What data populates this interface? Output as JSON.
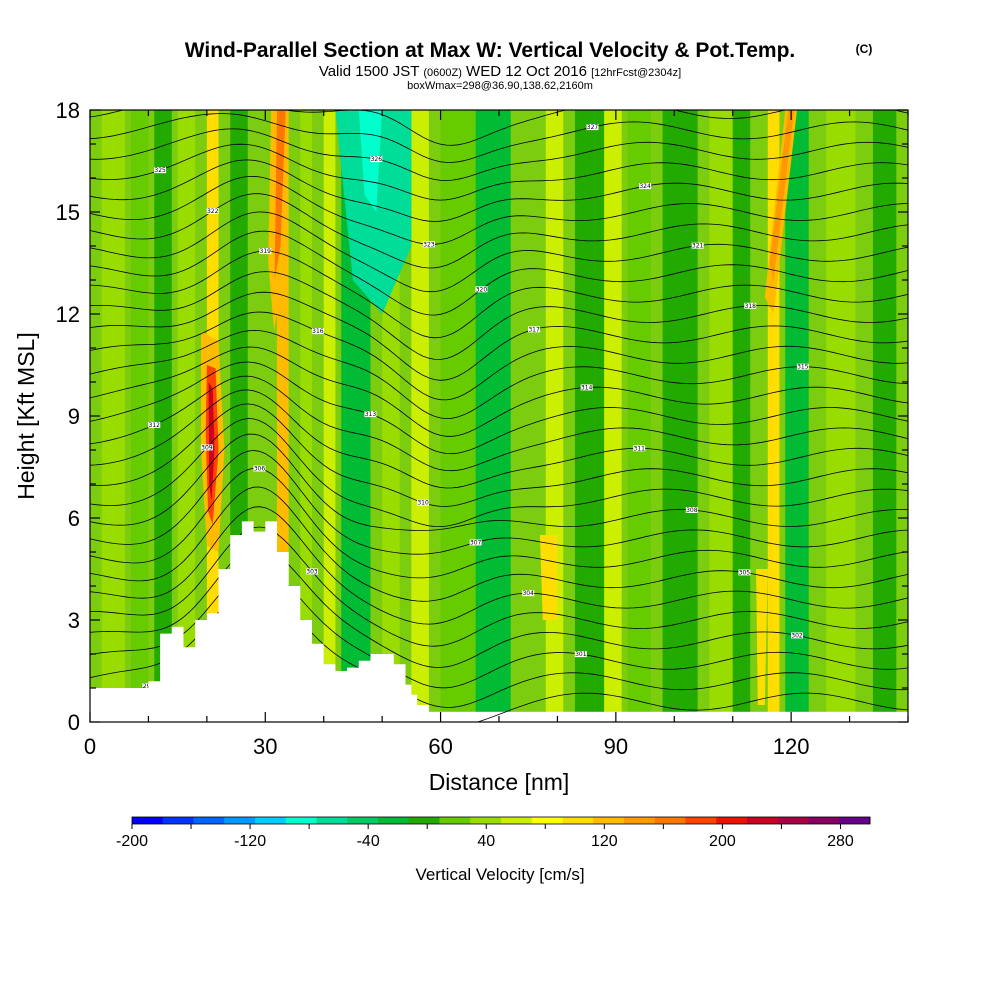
{
  "chart_data": {
    "type": "heatmap",
    "title": "Wind-Parallel Section at Max W: Vertical Velocity & Pot.Temp.",
    "title_mark": "(C)",
    "subtitle": {
      "prefix": "Valid 1500 JST",
      "utc": "(0600Z)",
      "date": "WED 12 Oct 2016",
      "forecast": "[12hrFcst@2304z]"
    },
    "box_info": "boxWmax=298@36.90,138.62,2160m",
    "xlabel": "Distance [nm]",
    "ylabel": "Height [Kft MSL]",
    "xlim": [
      0,
      140
    ],
    "ylim": [
      0,
      18
    ],
    "x_ticks": [
      "0",
      "30",
      "60",
      "90",
      "120"
    ],
    "x_tick_values": [
      0,
      30,
      60,
      90,
      120
    ],
    "y_ticks": [
      "0",
      "3",
      "6",
      "9",
      "12",
      "15",
      "18"
    ],
    "y_tick_values": [
      0,
      3,
      6,
      9,
      12,
      15,
      18
    ],
    "colorbar": {
      "label": "Vertical Velocity [cm/s]",
      "tick_labels": [
        "-200",
        "-120",
        "-40",
        "40",
        "120",
        "200",
        "280"
      ],
      "tick_values": [
        -200,
        -120,
        -40,
        40,
        120,
        200,
        280
      ],
      "range": [
        -200,
        300
      ],
      "colors": [
        "#0000ff",
        "#0033ff",
        "#0066ff",
        "#0099ff",
        "#00ccff",
        "#00ffcc",
        "#00dd99",
        "#00cc66",
        "#00bb33",
        "#22aa00",
        "#66cc00",
        "#99dd00",
        "#ccee00",
        "#ffff00",
        "#ffdd00",
        "#ffbb00",
        "#ff9900",
        "#ff7700",
        "#ff4400",
        "#ee1100",
        "#cc0022",
        "#aa0044",
        "#880066",
        "#660088"
      ]
    },
    "terrain": {
      "x": [
        0,
        5,
        10,
        12,
        14,
        16,
        18,
        20,
        22,
        24,
        26,
        28,
        30,
        32,
        34,
        36,
        38,
        40,
        42,
        44,
        46,
        48,
        50,
        52,
        54,
        55,
        56,
        58,
        60
      ],
      "y": [
        1.0,
        1.0,
        1.2,
        2.6,
        2.8,
        2.2,
        3.0,
        3.2,
        4.5,
        5.5,
        5.9,
        5.6,
        5.9,
        5.0,
        4.0,
        3.0,
        2.3,
        1.7,
        1.5,
        1.6,
        1.8,
        2.0,
        2.0,
        1.7,
        1.1,
        0.8,
        0.5,
        0.1,
        0.0
      ]
    },
    "theta_contour_labels": [
      "299",
      "300",
      "301",
      "302",
      "303",
      "304",
      "305",
      "306",
      "307",
      "308",
      "309",
      "310",
      "311",
      "312",
      "313",
      "314",
      "315",
      "316",
      "317",
      "318",
      "319",
      "320",
      "321",
      "322",
      "323",
      "324",
      "325",
      "326",
      "327",
      "328"
    ]
  }
}
